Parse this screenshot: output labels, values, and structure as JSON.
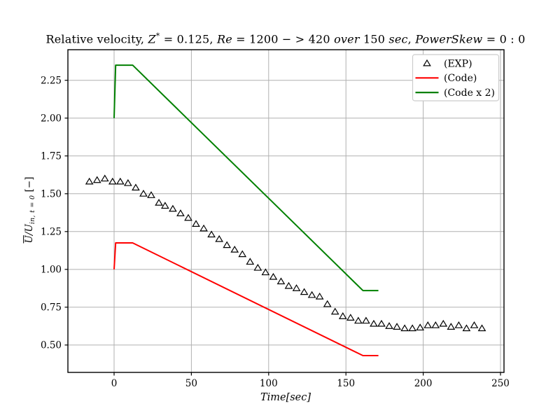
{
  "figure": {
    "title_plain": "Relative velocity, Z* = 0.125, Re = 1200 − > 420 over 150 sec, PowerSkew = 0 : 0",
    "title_segments": [
      {
        "text": "Relative velocity, ",
        "style": "regular"
      },
      {
        "text": "Z",
        "style": "italic"
      },
      {
        "text": "*",
        "style": "sup"
      },
      {
        "text": " = 0.125, ",
        "style": "regular"
      },
      {
        "text": "Re",
        "style": "italic"
      },
      {
        "text": " = 1200 − > 420 ",
        "style": "regular"
      },
      {
        "text": "over",
        "style": "italic"
      },
      {
        "text": " 150 ",
        "style": "regular"
      },
      {
        "text": "sec",
        "style": "italic"
      },
      {
        "text": ",  ",
        "style": "regular"
      },
      {
        "text": "PowerSkew",
        "style": "italic"
      },
      {
        "text": " = 0 : 0",
        "style": "regular"
      }
    ],
    "xlabel_segments": [
      {
        "text": "Time[sec]",
        "style": "italic"
      }
    ],
    "ylabel_segments": [
      {
        "text": "U",
        "style": "italic overline"
      },
      {
        "text": "/U",
        "style": "italic"
      },
      {
        "text": "in, t = 0",
        "style": "sub italic"
      },
      {
        "text": " [−]",
        "style": "regular"
      }
    ]
  },
  "chart_data": {
    "type": "mixed-line-scatter",
    "title": "Relative velocity, Z* = 0.125, Re = 1200 − > 420 over 150 sec, PowerSkew = 0 : 0",
    "xlabel": "Time[sec]",
    "ylabel": "U/U_(in, t = 0) [−]",
    "xlim": [
      -30,
      252
    ],
    "ylim": [
      0.32,
      2.45
    ],
    "xticks": [
      "0",
      "50",
      "100",
      "150",
      "200",
      "250"
    ],
    "yticks": [
      "0.50",
      "0.75",
      "1.00",
      "1.25",
      "1.50",
      "1.75",
      "2.00",
      "2.25"
    ],
    "grid": true,
    "grid_color": "#b0b0b0",
    "spine_color": "#000000",
    "legend": {
      "position": "upper right",
      "border_color": "#cccccc",
      "entries": [
        "(EXP)",
        "(Code)",
        "(Code x 2)"
      ]
    },
    "series": [
      {
        "name": "(EXP)",
        "type": "scatter",
        "marker": "open-triangle-up",
        "color": "#000000",
        "x": [
          -16,
          -11,
          -6,
          -1,
          4,
          9,
          14,
          19,
          24,
          29,
          33,
          38,
          43,
          48,
          53,
          58,
          63,
          68,
          73,
          78,
          83,
          88,
          93,
          98,
          103,
          108,
          113,
          118,
          123,
          128,
          133,
          138,
          143,
          148,
          153,
          158,
          163,
          168,
          173,
          178,
          183,
          188,
          193,
          198,
          203,
          208,
          213,
          218,
          223,
          228,
          233,
          238
        ],
        "y": [
          1.58,
          1.59,
          1.6,
          1.58,
          1.58,
          1.57,
          1.54,
          1.5,
          1.49,
          1.44,
          1.42,
          1.4,
          1.37,
          1.34,
          1.3,
          1.27,
          1.23,
          1.2,
          1.16,
          1.13,
          1.1,
          1.05,
          1.01,
          0.98,
          0.95,
          0.92,
          0.89,
          0.875,
          0.85,
          0.83,
          0.82,
          0.77,
          0.72,
          0.69,
          0.68,
          0.66,
          0.66,
          0.64,
          0.64,
          0.625,
          0.62,
          0.61,
          0.61,
          0.615,
          0.63,
          0.63,
          0.64,
          0.62,
          0.63,
          0.61,
          0.63,
          0.61
        ]
      },
      {
        "name": "(Code)",
        "type": "line",
        "color": "#ff0000",
        "linewidth": 2,
        "x": [
          0,
          1,
          12,
          161,
          171
        ],
        "y": [
          1.0,
          1.175,
          1.175,
          0.43,
          0.43
        ]
      },
      {
        "name": "(Code x 2)",
        "type": "line",
        "color": "#008000",
        "linewidth": 2,
        "x": [
          0,
          1,
          12,
          161,
          171
        ],
        "y": [
          2.0,
          2.35,
          2.35,
          0.86,
          0.86
        ]
      }
    ]
  }
}
